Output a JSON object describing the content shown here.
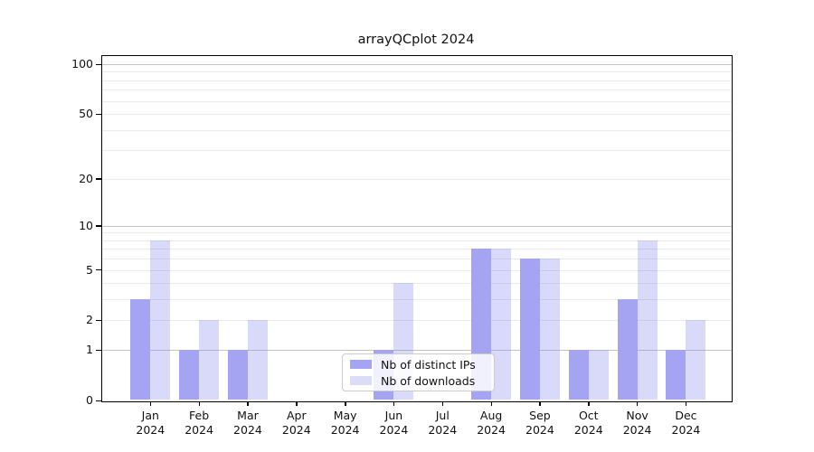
{
  "title": "arrayQCplot 2024",
  "chart_data": {
    "type": "bar",
    "categories": [
      "Jan",
      "Feb",
      "Mar",
      "Apr",
      "May",
      "Jun",
      "Jul",
      "Aug",
      "Sep",
      "Oct",
      "Nov",
      "Dec"
    ],
    "year_label": "2024",
    "series": [
      {
        "name": "Nb of distinct IPs",
        "color": "#a4a4f2",
        "values": [
          3,
          1,
          1,
          0,
          0,
          1,
          0,
          7,
          6,
          1,
          3,
          1
        ]
      },
      {
        "name": "Nb of downloads",
        "color": "#dcdcf9",
        "color_rgba": "rgba(130,130,240,0.3)",
        "values": [
          8,
          2,
          2,
          0,
          0,
          4,
          0,
          7,
          6,
          1,
          8,
          2
        ]
      }
    ],
    "title": "arrayQCplot 2024",
    "xlabel": "",
    "ylabel": "",
    "yscale": "log1p",
    "ylim": [
      0,
      112
    ],
    "yticks": [
      0,
      1,
      2,
      5,
      10,
      20,
      50,
      100
    ],
    "major_gridlines": [
      1,
      10,
      100
    ],
    "minor_gridlines": [
      2,
      3,
      4,
      5,
      6,
      7,
      8,
      9,
      20,
      30,
      40,
      50,
      60,
      70,
      80,
      90
    ],
    "grid": true,
    "legend_position": "lower center"
  },
  "legend": {
    "items": [
      {
        "label": "Nb of distinct IPs",
        "color": "#a4a4f2"
      },
      {
        "label": "Nb of downloads",
        "color": "#dcdcf9"
      }
    ]
  }
}
